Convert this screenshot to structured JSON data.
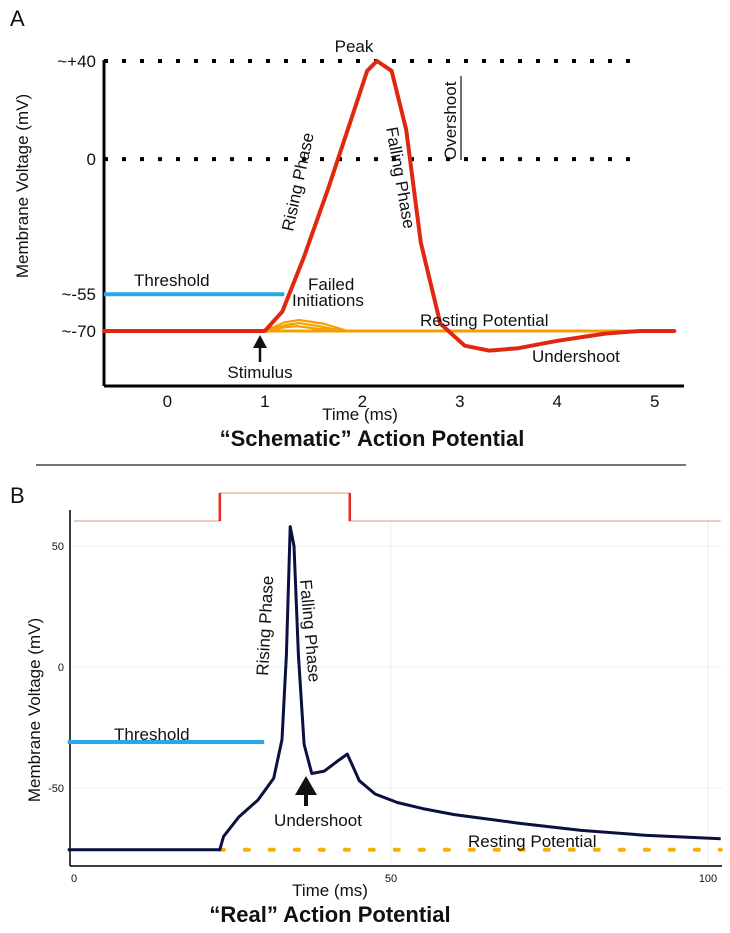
{
  "chart_data": [
    {
      "type": "line",
      "panel_label": "A",
      "title": "“Schematic” Action Potential",
      "xlabel": "Time (ms)",
      "ylabel": "Membrane Voltage (mV)",
      "xlim": [
        -0.65,
        5.3
      ],
      "ylim": [
        -78,
        42
      ],
      "x_ticks": [
        "0",
        "1",
        "2",
        "3",
        "4",
        "5"
      ],
      "y_ticks": [
        {
          "label": "~+40",
          "value": 40
        },
        {
          "label": "0",
          "value": 0
        },
        {
          "label": "~-55",
          "value": -55
        },
        {
          "label": "~-70",
          "value": -70
        }
      ],
      "reference_lines": [
        {
          "value": 40,
          "style": "dotted",
          "color": "#000000"
        },
        {
          "value": 0,
          "style": "dotted",
          "color": "#000000"
        }
      ],
      "series": [
        {
          "color": "#e02810",
          "x": [
            -0.65,
            1.0,
            1.18,
            1.4,
            1.65,
            1.9,
            2.05,
            2.15,
            2.3,
            2.45,
            2.6,
            2.8,
            3.05,
            3.3,
            3.6,
            4.0,
            4.5,
            4.85,
            5.2
          ],
          "y": [
            -70,
            -70,
            -62,
            -40,
            -12,
            18,
            36,
            40,
            36,
            12,
            -34,
            -67,
            -76,
            -78,
            -77,
            -74,
            -71,
            -70,
            -70
          ]
        },
        {
          "name": "Threshold",
          "color": "#28a8e8",
          "x": [
            -0.65,
            1.2
          ],
          "y": [
            -55,
            -55
          ]
        },
        {
          "name": "Resting Potential",
          "color": "#f5a000",
          "x": [
            1.0,
            5.2
          ],
          "y": [
            -70,
            -70
          ]
        }
      ],
      "failed_initiations": {
        "color": "#f5a000",
        "curves": [
          {
            "x": [
              1.0,
              1.2,
              1.35,
              1.6,
              1.85
            ],
            "y": [
              -70,
              -66.5,
              -65.5,
              -67,
              -70
            ]
          },
          {
            "x": [
              1.0,
              1.22,
              1.35,
              1.55,
              1.8
            ],
            "y": [
              -70,
              -67.5,
              -66.8,
              -68,
              -70
            ]
          },
          {
            "x": [
              1.0,
              1.2,
              1.33,
              1.52,
              1.75
            ],
            "y": [
              -70,
              -68.5,
              -68,
              -69,
              -70
            ]
          }
        ]
      },
      "annotations": [
        {
          "text": "Peak"
        },
        {
          "text": "Rising Phase"
        },
        {
          "text": "Falling Phase"
        },
        {
          "text": "Overshoot"
        },
        {
          "text": "Threshold"
        },
        {
          "text": "Failed"
        },
        {
          "text": "Initiations"
        },
        {
          "text": "Resting Potential"
        },
        {
          "text": "Undershoot"
        },
        {
          "text": "Stimulus"
        }
      ]
    },
    {
      "type": "line",
      "panel_label": "B",
      "title": "“Real” Action Potential",
      "xlabel": "Time (ms)",
      "ylabel": "Membrane Voltage (mV)",
      "xlim": [
        -1,
        102
      ],
      "ylim": [
        -78,
        61
      ],
      "x_ticks": [
        "0",
        "50",
        "100"
      ],
      "y_ticks": [
        {
          "label": "50",
          "value": 50
        },
        {
          "label": "0",
          "value": 0
        },
        {
          "label": "-50",
          "value": -50
        }
      ],
      "grid": true,
      "stimulus_trace": {
        "color": "#e8281e",
        "x": [
          0,
          23,
          23,
          43.5,
          43.5,
          102
        ],
        "level": [
          0,
          0,
          1,
          1,
          0,
          0
        ]
      },
      "series": [
        {
          "color": "#0a1040",
          "x": [
            -1,
            23,
            23.6,
            26,
            29,
            31.5,
            32.8,
            33.5,
            34.1,
            34.7,
            35.4,
            36.3,
            37.5,
            39.5,
            41.5,
            43.1,
            43.8,
            45,
            47.5,
            51,
            55,
            60,
            70,
            80,
            90,
            102
          ],
          "y": [
            -75.5,
            -75.5,
            -70,
            -62,
            -55,
            -46,
            -30,
            5,
            58,
            50,
            5,
            -32,
            -44,
            -43,
            -39,
            -36,
            -40,
            -47,
            -52.5,
            -56,
            -58.5,
            -61,
            -64.5,
            -67.5,
            -69.5,
            -71
          ]
        },
        {
          "name": "Threshold",
          "color": "#28a8e8",
          "x": [
            -1,
            30
          ],
          "y": [
            -31,
            -31
          ]
        },
        {
          "name": "Resting Potential",
          "color": "#f5b000",
          "style": "dotted",
          "x": [
            23,
            102
          ],
          "y": [
            -75.5,
            -75.5
          ]
        }
      ],
      "annotations": [
        {
          "text": "Rising Phase"
        },
        {
          "text": "Falling Phase"
        },
        {
          "text": "Threshold"
        },
        {
          "text": "Undershoot"
        },
        {
          "text": "Resting Potential"
        }
      ]
    }
  ]
}
